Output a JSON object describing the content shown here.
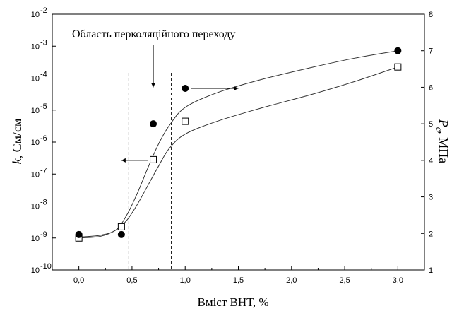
{
  "chart_data": {
    "type": "scatter",
    "title": "",
    "x_axis": {
      "label": "Вміст ВНТ, %",
      "range": [
        -0.25,
        3.25
      ],
      "ticks": [
        0,
        0.5,
        1.0,
        1.5,
        2.0,
        2.5,
        3.0
      ],
      "tick_labels": [
        "0,0",
        "0,5",
        "1,0",
        "1,5",
        "2,0",
        "2,5",
        "3,0"
      ]
    },
    "y_left": {
      "label_italic": "k",
      "label_rest": ", См/см",
      "scale": "log",
      "range": [
        1e-10,
        0.01
      ],
      "ticks": [
        -10,
        -9,
        -8,
        -7,
        -6,
        -5,
        -4,
        -3,
        -2
      ],
      "tick_labels": [
        "10",
        "10",
        "10",
        "10",
        "10",
        "10",
        "10",
        "10",
        "10"
      ],
      "tick_exponents": [
        "-10",
        "-9",
        "-8",
        "-7",
        "-6",
        "-5",
        "-4",
        "-3",
        "-2"
      ]
    },
    "y_right": {
      "label_italic": "P",
      "label_sub": "c",
      "label_rest": ", МПа",
      "range": [
        1,
        8
      ],
      "ticks": [
        1,
        2,
        3,
        4,
        5,
        6,
        7,
        8
      ],
      "tick_labels": [
        "1",
        "2",
        "3",
        "4",
        "5",
        "6",
        "7",
        "8"
      ]
    },
    "series": [
      {
        "axis": "left",
        "marker": "open-square",
        "x": [
          0.0,
          0.4,
          0.7,
          1.0,
          3.0
        ],
        "y_log10": [
          -9.0,
          -8.65,
          -6.55,
          -5.35,
          -3.65
        ]
      },
      {
        "axis": "right",
        "marker": "filled-circle",
        "x": [
          0.0,
          0.4,
          0.7,
          1.0,
          3.0
        ],
        "y": [
          1.97,
          1.97,
          5.0,
          5.97,
          7.0
        ]
      }
    ],
    "fit_curves": [
      {
        "axis": "left",
        "x": [
          0.0,
          0.2,
          0.35,
          0.45,
          0.55,
          0.65,
          0.75,
          0.85,
          1.0,
          1.3,
          1.7,
          2.2,
          2.6,
          3.0
        ],
        "y_log10": [
          -9.0,
          -8.95,
          -8.75,
          -8.45,
          -7.95,
          -7.35,
          -6.75,
          -6.2,
          -5.75,
          -5.35,
          -4.95,
          -4.5,
          -4.1,
          -3.65
        ]
      },
      {
        "axis": "right",
        "x": [
          0.0,
          0.2,
          0.35,
          0.45,
          0.55,
          0.65,
          0.75,
          0.85,
          1.0,
          1.3,
          1.7,
          2.2,
          2.6,
          3.0
        ],
        "y": [
          1.9,
          1.95,
          2.1,
          2.5,
          3.1,
          3.8,
          4.45,
          4.95,
          5.45,
          5.85,
          6.2,
          6.55,
          6.8,
          7.0
        ]
      }
    ],
    "reference_lines_x": [
      0.47,
      0.87
    ],
    "annotation": {
      "text": "Область перколяційного переходу",
      "arrow_target": {
        "x": 0.7,
        "y": 6.0
      }
    },
    "axis_indicators": [
      {
        "direction": "left",
        "from": {
          "x": 0.7,
          "y": 4.0
        },
        "to": {
          "x": 0.4,
          "y": 4.0
        }
      },
      {
        "direction": "right",
        "from": {
          "x": 1.0,
          "y": 5.97
        },
        "to": {
          "x": 1.5,
          "y": 5.97
        }
      }
    ]
  }
}
